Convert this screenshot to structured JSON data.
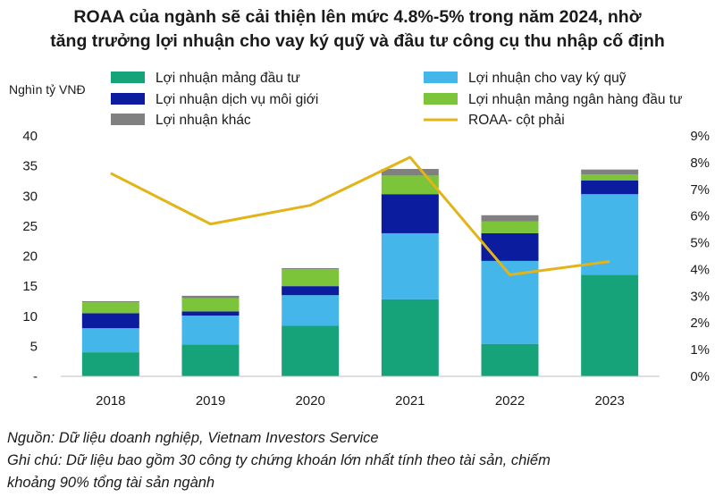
{
  "title_lines": [
    "ROAA của ngành sẽ cải thiện lên mức 4.8%-5% trong năm 2024, nhờ",
    "tăng trưởng lợi nhuận cho vay ký quỹ và đầu tư công cụ thu nhập cố định"
  ],
  "source": "Nguồn: Dữ liệu doanh nghiệp, Vietnam Investors Service",
  "note_lines": [
    "Ghi chú: Dữ liệu bao gồm 30 công ty chứng khoán lớn nhất tính theo tài sản, chiếm",
    "khoảng 90% tổng tài sản ngành"
  ],
  "chart_data": {
    "type": "bar",
    "stacked": true,
    "categories": [
      "2018",
      "2019",
      "2020",
      "2021",
      "2022",
      "2023"
    ],
    "ylabel": "Nghìn tỷ VNĐ",
    "ylim": [
      0,
      40
    ],
    "y_ticks": [
      "-",
      "5",
      "10",
      "15",
      "20",
      "25",
      "30",
      "35",
      "40"
    ],
    "y2lim": [
      0,
      9
    ],
    "y2_ticks": [
      "0%",
      "1%",
      "2%",
      "3%",
      "4%",
      "5%",
      "6%",
      "7%",
      "8%",
      "9%"
    ],
    "series": [
      {
        "name": "Lợi nhuận mảng đầu tư",
        "color": "#16a37a",
        "values": [
          4.0,
          5.3,
          8.4,
          12.8,
          5.4,
          16.9
        ]
      },
      {
        "name": "Lợi nhuận cho vay ký quỹ",
        "color": "#45b6e9",
        "values": [
          4.0,
          4.8,
          5.1,
          11.0,
          13.8,
          13.4
        ]
      },
      {
        "name": "Lợi nhuận dịch vụ môi giới",
        "color": "#0b1c9e",
        "values": [
          2.5,
          0.7,
          1.5,
          6.5,
          4.6,
          2.3
        ]
      },
      {
        "name": "Lợi nhuận mảng ngân hàng đầu tư",
        "color": "#7cc43a",
        "values": [
          1.8,
          2.2,
          2.8,
          3.1,
          2.0,
          1.0
        ]
      },
      {
        "name": "Lợi nhuận khác",
        "color": "#808080",
        "values": [
          0.2,
          0.4,
          0.2,
          1.1,
          1.0,
          0.8
        ]
      }
    ],
    "line": {
      "name": "ROAA- cột phải",
      "color": "#e2b417",
      "values": [
        7.6,
        5.7,
        6.4,
        8.2,
        3.8,
        4.3
      ]
    },
    "legend_placement": "top",
    "grid": false
  }
}
